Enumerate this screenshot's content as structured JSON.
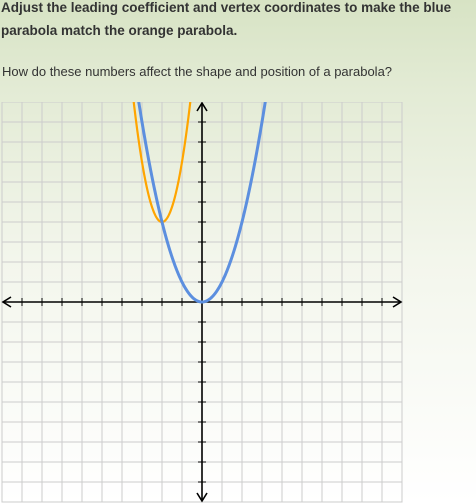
{
  "instructions": {
    "heading": "Adjust the leading coefficient and vertex coordinates to make the blue parabola match the orange parabola.",
    "question": "How do these numbers affect the shape and position of a parabola?"
  },
  "graph": {
    "grid_color": "#cccccc",
    "axis_color": "#000000",
    "x_range": [
      -10,
      10
    ],
    "y_range": [
      -10,
      10
    ],
    "parabolas": [
      {
        "name": "orange-parabola",
        "color": "#ffa500",
        "a": 3,
        "h": -2,
        "k": 4
      },
      {
        "name": "blue-parabola",
        "color": "#5c8fdf",
        "a": 1,
        "h": 0,
        "k": 0
      }
    ]
  }
}
